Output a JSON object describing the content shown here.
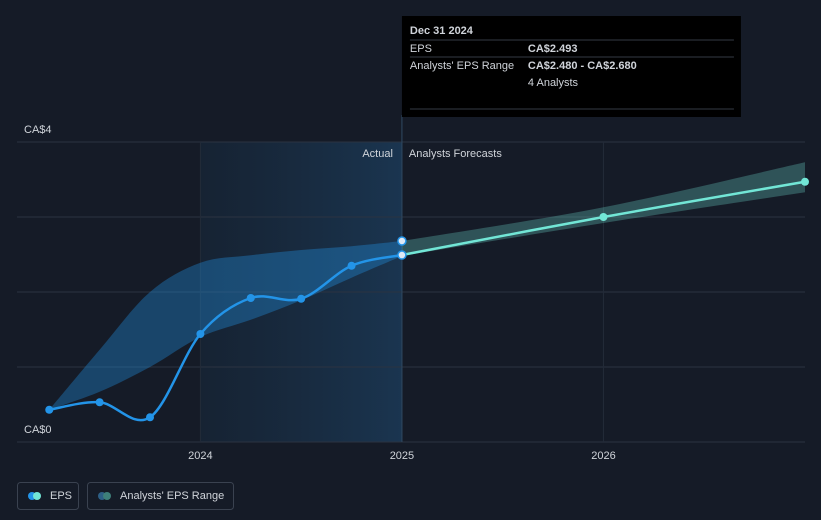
{
  "chart_data": {
    "type": "line",
    "x": [
      2023.25,
      2023.5,
      2023.75,
      2024,
      2024.25,
      2024.5,
      2024.75,
      2025,
      2026,
      2027
    ],
    "xlim": [
      2023.09,
      2027.0
    ],
    "xticks": [
      2024,
      2025,
      2026
    ],
    "ylim": [
      0,
      4
    ],
    "yticks": [
      {
        "value": 0,
        "label": "CA$0"
      },
      {
        "value": 1,
        "label": null
      },
      {
        "value": 2,
        "label": null
      },
      {
        "value": 3,
        "label": null
      },
      {
        "value": 4,
        "label": "CA$4"
      }
    ],
    "grid": true,
    "forecast_from": 2025,
    "actual_label": "Actual",
    "forecast_label": "Analysts Forecasts",
    "series": [
      {
        "name": "EPS",
        "color": "#2394e8",
        "forecast_color": "#72e6d6",
        "values": [
          0.43,
          0.53,
          0.33,
          1.44,
          1.92,
          1.91,
          2.35,
          2.493,
          3.0,
          3.47
        ]
      }
    ],
    "range": {
      "name": "Analysts' EPS Range",
      "color": "#2394e8",
      "forecast_color": "#72e6d6",
      "low": [
        0.43,
        0.67,
        1.0,
        1.4,
        1.63,
        1.89,
        2.19,
        2.48,
        2.92,
        3.33
      ],
      "high": [
        0.43,
        1.23,
        2.0,
        2.39,
        2.49,
        2.56,
        2.61,
        2.68,
        3.13,
        3.73
      ]
    },
    "tooltip": {
      "x": 2025,
      "date": "Dec 31 2024",
      "eps_label": "EPS",
      "eps_value": "CA$2.493",
      "range_label": "Analysts' EPS Range",
      "range_value": "CA$2.480 - CA$2.680",
      "analysts": "4 Analysts"
    }
  }
}
